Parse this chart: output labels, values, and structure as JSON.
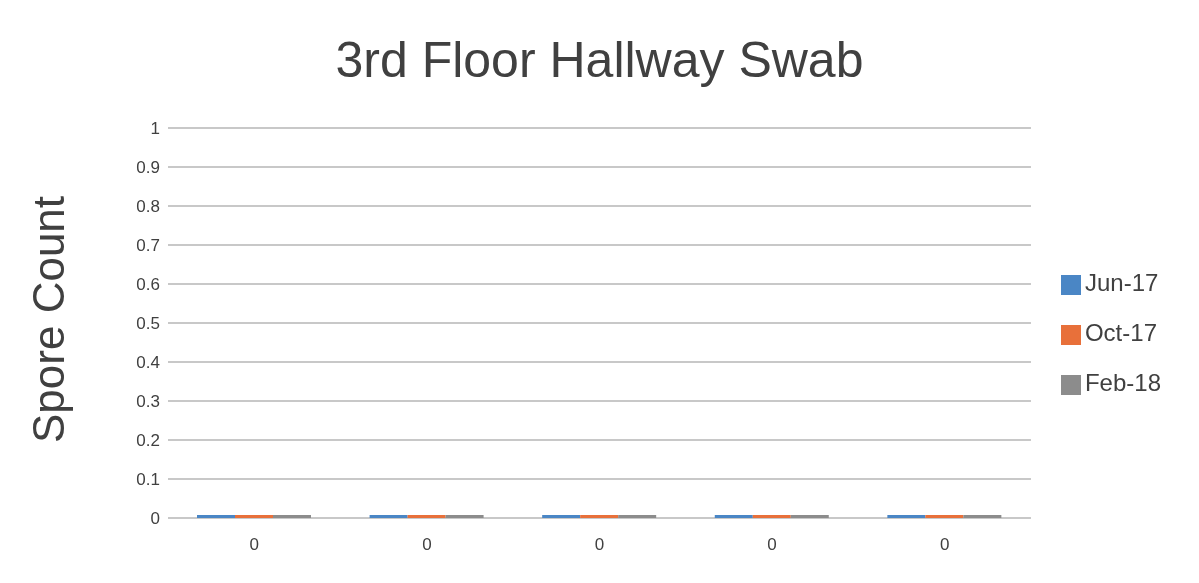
{
  "chart_data": {
    "type": "bar",
    "title": "3rd Floor Hallway Swab",
    "ylabel": "Spore Count",
    "categories": [
      "0",
      "0",
      "0",
      "0",
      "0"
    ],
    "series": [
      {
        "name": "Jun-17",
        "color": "#4a86c5",
        "values": [
          0,
          0,
          0,
          0,
          0
        ]
      },
      {
        "name": "Oct-17",
        "color": "#e8703a",
        "values": [
          0,
          0,
          0,
          0,
          0
        ]
      },
      {
        "name": "Feb-18",
        "color": "#8c8c8c",
        "values": [
          0,
          0,
          0,
          0,
          0
        ]
      }
    ],
    "ylim": [
      0,
      1
    ],
    "yticks": [
      0,
      0.1,
      0.2,
      0.3,
      0.4,
      0.5,
      0.6,
      0.7,
      0.8,
      0.9,
      1
    ],
    "grid": "y",
    "legend": "right"
  }
}
